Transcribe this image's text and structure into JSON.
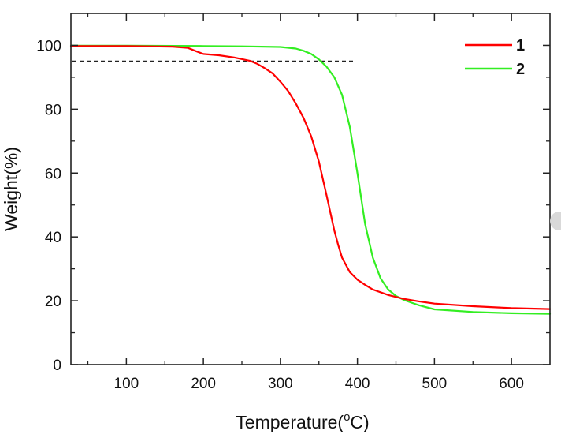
{
  "chart_data": {
    "type": "line",
    "title": "",
    "xlabel": "Temperature(",
    "xlabel_sup": "o",
    "xlabel_tail": "C)",
    "ylabel": "Weight(%)",
    "xlim": [
      28,
      650
    ],
    "ylim": [
      0,
      110
    ],
    "x_ticks": [
      100,
      200,
      300,
      400,
      500,
      600
    ],
    "x_tick_labels": [
      "100",
      "200",
      "300",
      "400",
      "500",
      "600"
    ],
    "x_minor_ticks": [
      50,
      150,
      250,
      350,
      450,
      550
    ],
    "y_ticks": [
      0,
      20,
      40,
      60,
      80,
      100
    ],
    "y_tick_labels": [
      "0",
      "20",
      "40",
      "60",
      "80",
      "100"
    ],
    "y_minor_ticks": [
      10,
      30,
      50,
      70,
      90
    ],
    "legend_position": "top-right",
    "reference_line": {
      "y": 95,
      "x_start": 28,
      "x_end": 395,
      "style": "dashed",
      "color": "#222222"
    },
    "series": [
      {
        "name": "1",
        "color": "#ff0000",
        "x": [
          28,
          100,
          160,
          180,
          190,
          200,
          220,
          240,
          260,
          270,
          280,
          290,
          300,
          310,
          320,
          330,
          340,
          350,
          360,
          370,
          375,
          380,
          390,
          400,
          410,
          420,
          440,
          460,
          480,
          500,
          550,
          600,
          650
        ],
        "y": [
          99.8,
          99.8,
          99.6,
          99.2,
          98.2,
          97.3,
          96.9,
          96.2,
          95.2,
          94.2,
          92.8,
          91.2,
          88.6,
          85.7,
          81.8,
          77.3,
          71.5,
          63.5,
          53.0,
          42.0,
          37.5,
          33.5,
          29.0,
          26.6,
          25.0,
          23.5,
          21.8,
          20.6,
          19.8,
          19.1,
          18.3,
          17.7,
          17.4
        ]
      },
      {
        "name": "2",
        "color": "#33ee22",
        "x": [
          28,
          100,
          200,
          250,
          300,
          320,
          330,
          340,
          350,
          360,
          370,
          380,
          390,
          400,
          410,
          420,
          430,
          440,
          450,
          460,
          470,
          480,
          500,
          550,
          600,
          650
        ],
        "y": [
          99.9,
          99.9,
          99.8,
          99.7,
          99.5,
          99.0,
          98.3,
          97.3,
          95.6,
          93.3,
          90.0,
          84.5,
          74.5,
          60.0,
          44.0,
          33.5,
          27.0,
          23.5,
          21.5,
          20.3,
          19.4,
          18.6,
          17.3,
          16.5,
          16.1,
          15.9
        ]
      }
    ]
  }
}
